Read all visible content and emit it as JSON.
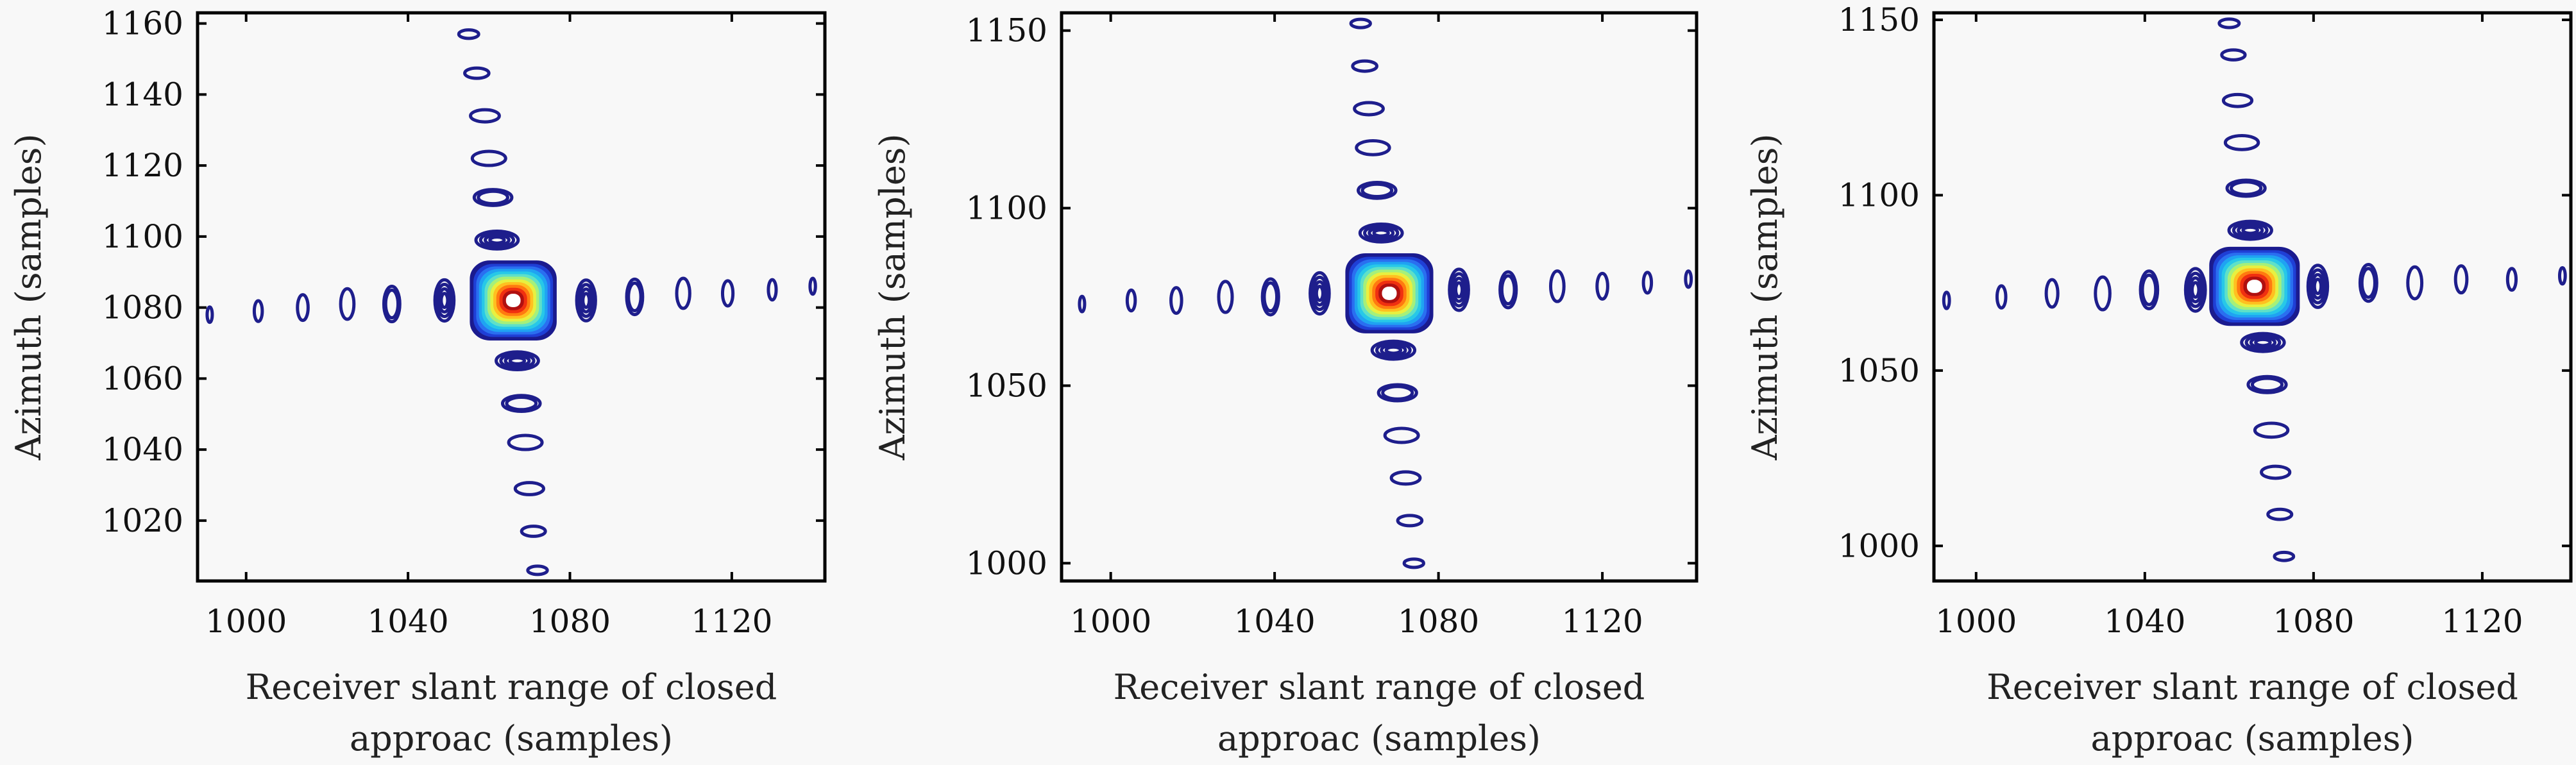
{
  "figure": {
    "background": "#f8f8f8",
    "axis_color": "#000000",
    "colormap": "jet"
  },
  "chart_data": [
    {
      "type": "contour",
      "title": "",
      "xlabel_lines": [
        "Receiver slant range of closed",
        "approac (samples)"
      ],
      "ylabel": "Azimuth (samples)",
      "xlim": [
        988,
        1143
      ],
      "ylim": [
        1003,
        1163
      ],
      "xticks": [
        1000,
        1040,
        1080,
        1120
      ],
      "yticks": [
        1020,
        1040,
        1060,
        1080,
        1100,
        1120,
        1140,
        1160
      ],
      "grid": false,
      "mainlobe": {
        "x": 1066,
        "y": 1082
      },
      "range_sidelobes": [
        {
          "x": 991,
          "y": 1078
        },
        {
          "x": 1003,
          "y": 1079
        },
        {
          "x": 1014,
          "y": 1080
        },
        {
          "x": 1025,
          "y": 1081
        },
        {
          "x": 1036,
          "y": 1081
        },
        {
          "x": 1049,
          "y": 1082
        },
        {
          "x": 1084,
          "y": 1082
        },
        {
          "x": 1096,
          "y": 1083
        },
        {
          "x": 1108,
          "y": 1084
        },
        {
          "x": 1119,
          "y": 1084
        },
        {
          "x": 1130,
          "y": 1085
        },
        {
          "x": 1140,
          "y": 1086
        }
      ],
      "azimuth_sidelobes": [
        {
          "x": 1055,
          "y": 1157
        },
        {
          "x": 1057,
          "y": 1146
        },
        {
          "x": 1059,
          "y": 1134
        },
        {
          "x": 1060,
          "y": 1122
        },
        {
          "x": 1061,
          "y": 1111
        },
        {
          "x": 1062,
          "y": 1099
        },
        {
          "x": 1067,
          "y": 1065
        },
        {
          "x": 1068,
          "y": 1053
        },
        {
          "x": 1069,
          "y": 1042
        },
        {
          "x": 1070,
          "y": 1029
        },
        {
          "x": 1071,
          "y": 1017
        },
        {
          "x": 1072,
          "y": 1006
        }
      ]
    },
    {
      "type": "contour",
      "title": "",
      "xlabel_lines": [
        "Receiver slant range of closed",
        "approac (samples)"
      ],
      "ylabel": "Azimuth (samples)",
      "xlim": [
        988,
        1143
      ],
      "ylim": [
        995,
        1155
      ],
      "xticks": [
        1000,
        1040,
        1080,
        1120
      ],
      "yticks": [
        1000,
        1050,
        1100,
        1150
      ],
      "grid": false,
      "mainlobe": {
        "x": 1068,
        "y": 1076
      },
      "range_sidelobes": [
        {
          "x": 993,
          "y": 1073
        },
        {
          "x": 1005,
          "y": 1074
        },
        {
          "x": 1016,
          "y": 1074
        },
        {
          "x": 1028,
          "y": 1075
        },
        {
          "x": 1039,
          "y": 1075
        },
        {
          "x": 1051,
          "y": 1076
        },
        {
          "x": 1085,
          "y": 1077
        },
        {
          "x": 1097,
          "y": 1077
        },
        {
          "x": 1109,
          "y": 1078
        },
        {
          "x": 1120,
          "y": 1078
        },
        {
          "x": 1131,
          "y": 1079
        },
        {
          "x": 1141,
          "y": 1080
        }
      ],
      "azimuth_sidelobes": [
        {
          "x": 1061,
          "y": 1152
        },
        {
          "x": 1062,
          "y": 1140
        },
        {
          "x": 1063,
          "y": 1128
        },
        {
          "x": 1064,
          "y": 1117
        },
        {
          "x": 1065,
          "y": 1105
        },
        {
          "x": 1066,
          "y": 1093
        },
        {
          "x": 1069,
          "y": 1060
        },
        {
          "x": 1070,
          "y": 1048
        },
        {
          "x": 1071,
          "y": 1036
        },
        {
          "x": 1072,
          "y": 1024
        },
        {
          "x": 1073,
          "y": 1012
        },
        {
          "x": 1074,
          "y": 1000
        }
      ]
    },
    {
      "type": "contour",
      "title": "",
      "xlabel_lines": [
        "Receiver slant range of closed",
        "approac (samples)"
      ],
      "ylabel": "Azimuth (samples)",
      "xlim": [
        990,
        1141
      ],
      "ylim": [
        990,
        1152
      ],
      "xticks": [
        1000,
        1040,
        1080,
        1120
      ],
      "yticks": [
        1000,
        1050,
        1100,
        1150
      ],
      "grid": false,
      "mainlobe": {
        "x": 1066,
        "y": 1074
      },
      "range_sidelobes": [
        {
          "x": 993,
          "y": 1070
        },
        {
          "x": 1006,
          "y": 1071
        },
        {
          "x": 1018,
          "y": 1072
        },
        {
          "x": 1030,
          "y": 1072
        },
        {
          "x": 1041,
          "y": 1073
        },
        {
          "x": 1052,
          "y": 1073
        },
        {
          "x": 1081,
          "y": 1074
        },
        {
          "x": 1093,
          "y": 1075
        },
        {
          "x": 1104,
          "y": 1075
        },
        {
          "x": 1115,
          "y": 1076
        },
        {
          "x": 1127,
          "y": 1076
        },
        {
          "x": 1139,
          "y": 1077
        }
      ],
      "azimuth_sidelobes": [
        {
          "x": 1060,
          "y": 1149
        },
        {
          "x": 1061,
          "y": 1140
        },
        {
          "x": 1062,
          "y": 1127
        },
        {
          "x": 1063,
          "y": 1115
        },
        {
          "x": 1064,
          "y": 1102
        },
        {
          "x": 1065,
          "y": 1090
        },
        {
          "x": 1068,
          "y": 1058
        },
        {
          "x": 1069,
          "y": 1046
        },
        {
          "x": 1070,
          "y": 1033
        },
        {
          "x": 1071,
          "y": 1021
        },
        {
          "x": 1072,
          "y": 1009
        },
        {
          "x": 1073,
          "y": 997
        }
      ]
    }
  ]
}
